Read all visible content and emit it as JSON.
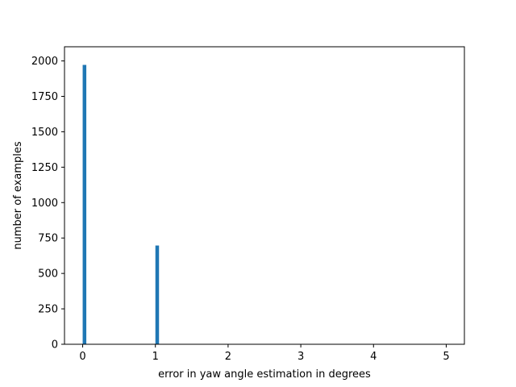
{
  "chart_data": {
    "type": "bar",
    "title": "",
    "xlabel": "error in yaw angle estimation in degrees",
    "ylabel": "number of examples",
    "bar_color": "#1f77b4",
    "xlim": [
      -0.25,
      5.25
    ],
    "ylim": [
      0,
      2100
    ],
    "xticks": [
      0,
      1,
      2,
      3,
      4,
      5
    ],
    "yticks": [
      0,
      250,
      500,
      750,
      1000,
      1250,
      1500,
      1750,
      2000
    ],
    "xtick_labels": [
      "0",
      "1",
      "2",
      "3",
      "4",
      "5"
    ],
    "ytick_labels": [
      "0",
      "250",
      "500",
      "750",
      "1000",
      "1250",
      "1500",
      "1750",
      "2000"
    ],
    "bin_width": 0.05,
    "x": [
      0,
      1
    ],
    "values": [
      1972,
      697
    ],
    "grid": false,
    "legend": null
  }
}
